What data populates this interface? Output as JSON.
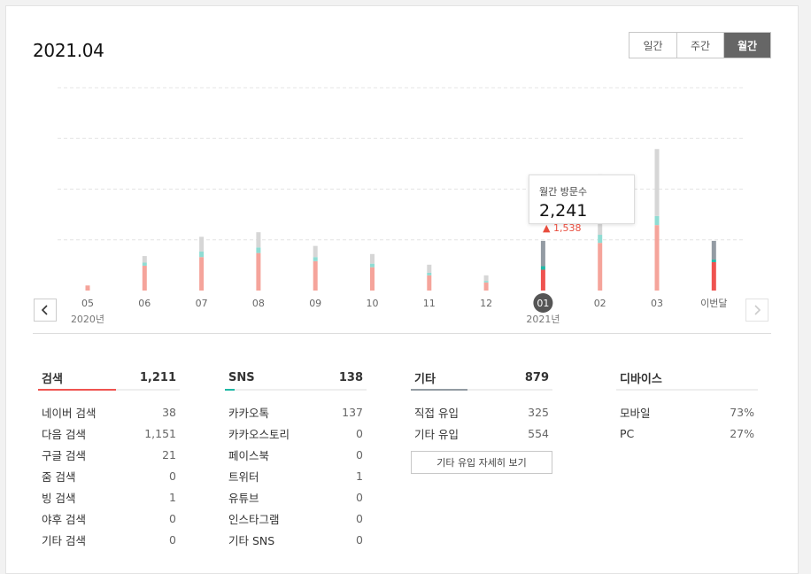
{
  "header": {
    "title": "2021.04",
    "toggle": [
      {
        "label": "일간",
        "active": false
      },
      {
        "label": "주간",
        "active": false
      },
      {
        "label": "월간",
        "active": true
      }
    ]
  },
  "chart_data": {
    "type": "bar",
    "stacked": true,
    "categories": [
      "05",
      "06",
      "07",
      "08",
      "09",
      "10",
      "11",
      "12",
      "01",
      "02",
      "03",
      "이번달"
    ],
    "year_labels": [
      {
        "index": 0,
        "label": "2020년"
      },
      {
        "index": 8,
        "label": "2021년"
      }
    ],
    "selected_index": 8,
    "highlight_indices": [
      8,
      11
    ],
    "series": [
      {
        "color": "#f5a49b",
        "highlight_color": "#ef5350",
        "values": [
          100,
          490,
          660,
          740,
          580,
          460,
          300,
          160,
          410,
          940,
          1290,
          560
        ]
      },
      {
        "color": "#8fdcd3",
        "highlight_color": "#1fb8a5",
        "values": [
          0,
          60,
          110,
          110,
          80,
          70,
          50,
          30,
          70,
          160,
          180,
          50
        ]
      },
      {
        "color": "#d6d6d6",
        "highlight_color": "#939ba3",
        "values": [
          0,
          130,
          290,
          300,
          220,
          190,
          160,
          110,
          500,
          1190,
          1320,
          370
        ]
      }
    ],
    "ylim": [
      0,
      4000
    ],
    "gridlines": 4,
    "grid": true
  },
  "tooltip": {
    "label": "월간 방문수",
    "value": "2,241",
    "change": "▲ 1,538"
  },
  "stats": [
    {
      "title": "검색",
      "total": "1,211",
      "bar_fraction": 0.55,
      "bar_color": "#ef5350",
      "rows": [
        {
          "name": "네이버 검색",
          "value": "38"
        },
        {
          "name": "다음 검색",
          "value": "1,151"
        },
        {
          "name": "구글 검색",
          "value": "21"
        },
        {
          "name": "줌 검색",
          "value": "0"
        },
        {
          "name": "빙 검색",
          "value": "1"
        },
        {
          "name": "야후 검색",
          "value": "0"
        },
        {
          "name": "기타 검색",
          "value": "0"
        }
      ]
    },
    {
      "title": "SNS",
      "total": "138",
      "bar_fraction": 0.07,
      "bar_color": "#1fb8a5",
      "rows": [
        {
          "name": "카카오톡",
          "value": "137"
        },
        {
          "name": "카카오스토리",
          "value": "0"
        },
        {
          "name": "페이스북",
          "value": "0"
        },
        {
          "name": "트위터",
          "value": "1"
        },
        {
          "name": "유튜브",
          "value": "0"
        },
        {
          "name": "인스타그램",
          "value": "0"
        },
        {
          "name": "기타 SNS",
          "value": "0"
        }
      ]
    },
    {
      "title": "기타",
      "total": "879",
      "bar_fraction": 0.4,
      "bar_color": "#939ba3",
      "rows": [
        {
          "name": "직접 유입",
          "value": "325"
        },
        {
          "name": "기타 유입",
          "value": "554"
        }
      ],
      "button": "기타 유입 자세히 보기"
    },
    {
      "title": "디바이스",
      "total": "",
      "bar_fraction": 0,
      "bar_color": "#939ba3",
      "rows": [
        {
          "name": "모바일",
          "value": "73%"
        },
        {
          "name": "PC",
          "value": "27%"
        }
      ]
    }
  ],
  "icons": {
    "prev": "chevron-left-icon",
    "next": "chevron-right-icon"
  }
}
